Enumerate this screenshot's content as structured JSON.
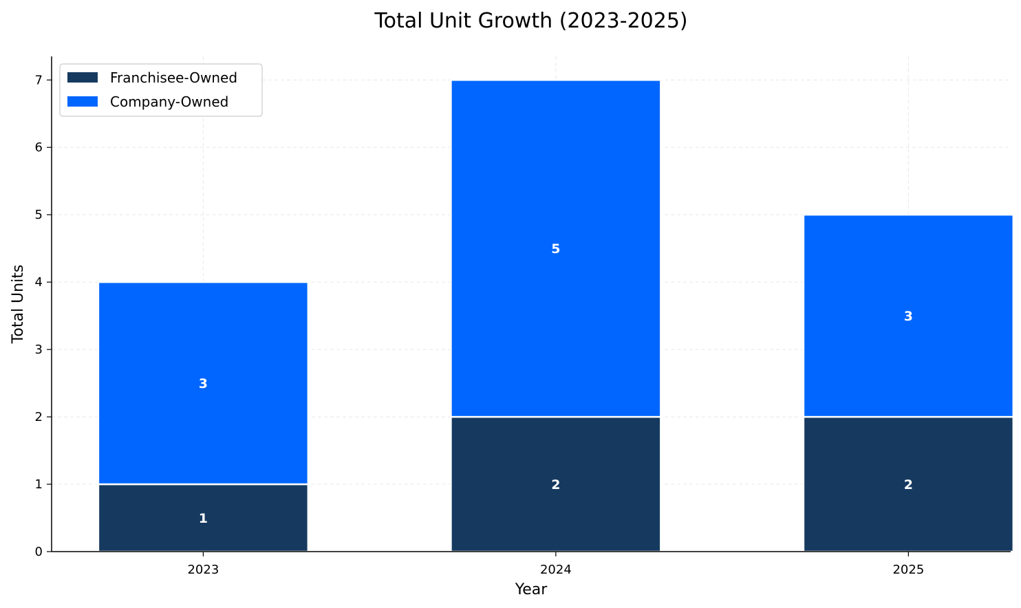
{
  "chart_data": {
    "type": "bar",
    "stacked": true,
    "title": "Total Unit Growth (2023-2025)",
    "xlabel": "Year",
    "ylabel": "Total Units",
    "categories": [
      "2023",
      "2024",
      "2025"
    ],
    "series": [
      {
        "name": "Franchisee-Owned",
        "values": [
          1,
          2,
          2
        ],
        "color": "#163a5f"
      },
      {
        "name": "Company-Owned",
        "values": [
          3,
          5,
          3
        ],
        "color": "#0066ff"
      }
    ],
    "ylim": [
      0,
      7.35
    ],
    "yticks": [
      0,
      1,
      2,
      3,
      4,
      5,
      6,
      7
    ],
    "grid": true,
    "legend_position": "top-left"
  }
}
